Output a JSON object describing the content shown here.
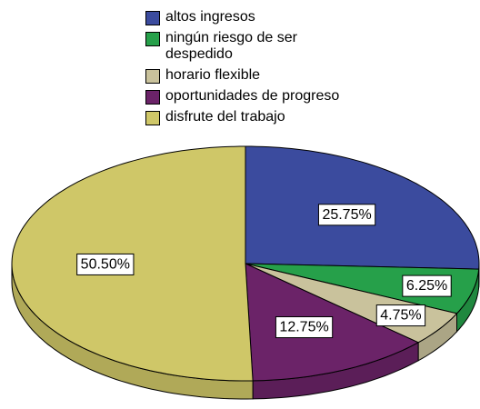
{
  "chart_data": {
    "type": "pie3d",
    "categories": [
      "altos ingresos",
      "ningún riesgo de ser despedido",
      "horario flexible",
      "oportunidades de progreso",
      "disfrute del trabajo"
    ],
    "values": [
      25.75,
      6.25,
      4.75,
      12.75,
      50.5
    ],
    "value_labels": [
      "25.75%",
      "6.25%",
      "4.75%",
      "12.75%",
      "50.50%"
    ],
    "colors": [
      "#3b4b9e",
      "#26a04a",
      "#c9c29c",
      "#6b2368",
      "#cfc768"
    ],
    "legend": "top"
  }
}
